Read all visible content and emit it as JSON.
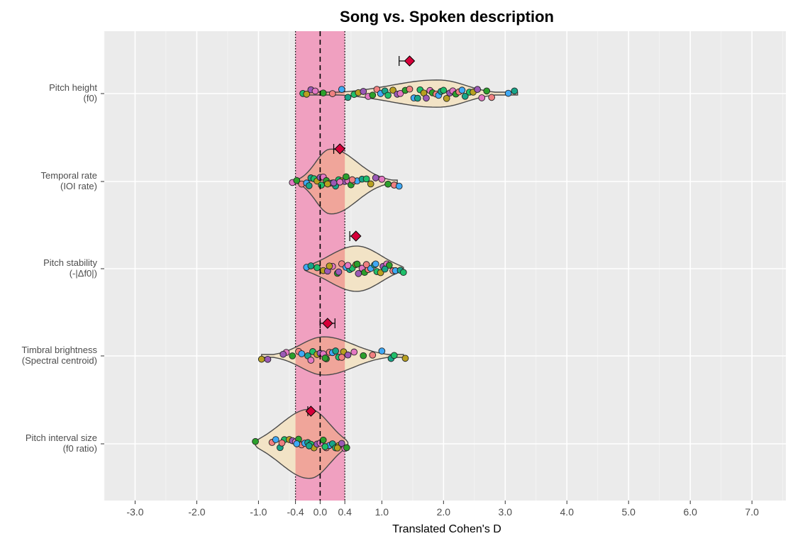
{
  "chart_data": {
    "type": "violin",
    "title": "Song vs. Spoken description",
    "xlabel": "Translated Cohen's D",
    "ylabel": "",
    "xlim": [
      -3.5,
      7.55
    ],
    "x_ticks": [
      "-3.0",
      "-2.0",
      "-1.0",
      "-0.4",
      "0.0",
      "0.4",
      "1.0",
      "2.0",
      "3.0",
      "4.0",
      "5.0",
      "6.0",
      "7.0"
    ],
    "null_band": [
      -0.4,
      0.4
    ],
    "reference_line": 0.0,
    "colors": {
      "panel": "#ebebeb",
      "grid": "#ffffff",
      "null_band": "#f0a0c0",
      "violin_fill": "#f2e3c6",
      "violin_fill_in_band": "#f0a59a",
      "violin_stroke": "#4a4a4a",
      "estimate_marker": "#d6003a",
      "point_palette": [
        "#1fbf6a",
        "#e377c2",
        "#3fa9f5",
        "#b8a020",
        "#2ca02c",
        "#17a589",
        "#9b59b6",
        "#f08080"
      ]
    },
    "categories": [
      {
        "label": [
          "Pitch height",
          "(f0)"
        ],
        "estimate": 1.45,
        "ci": [
          1.28,
          1.45
        ],
        "violin": {
          "min": -0.3,
          "max": 3.2,
          "mode": 1.95,
          "halfwidth": 0.16,
          "skew": 0.35
        },
        "points": [
          -0.28,
          -0.22,
          -0.15,
          -0.08,
          0.05,
          0.2,
          0.35,
          0.45,
          0.55,
          0.62,
          0.7,
          0.78,
          0.85,
          0.92,
          0.98,
          1.05,
          1.1,
          1.18,
          1.25,
          1.3,
          1.38,
          1.45,
          1.52,
          1.58,
          1.62,
          1.68,
          1.72,
          1.78,
          1.82,
          1.88,
          1.92,
          1.96,
          2.0,
          2.05,
          2.1,
          2.15,
          2.2,
          2.25,
          2.3,
          2.35,
          2.42,
          2.48,
          2.55,
          2.62,
          2.7,
          2.78,
          3.05,
          3.15
        ]
      },
      {
        "label": [
          "Temporal rate",
          "(IOI rate)"
        ],
        "estimate": 0.32,
        "ci": [
          0.22,
          0.32
        ],
        "violin": {
          "min": -0.45,
          "max": 1.25,
          "mode": 0.15,
          "halfwidth": 0.38,
          "skew": 0.4
        },
        "points": [
          -0.45,
          -0.38,
          -0.3,
          -0.22,
          -0.15,
          -0.1,
          -0.05,
          0.0,
          0.05,
          0.1,
          0.15,
          0.2,
          0.25,
          0.3,
          0.35,
          0.4,
          0.45,
          0.5,
          0.55,
          0.6,
          0.68,
          0.75,
          0.82,
          0.9,
          1.0,
          1.1,
          1.2,
          1.28,
          -0.18,
          0.02,
          0.12,
          0.22,
          0.32,
          0.42,
          0.52
        ]
      },
      {
        "label": [
          "Pitch stability",
          "(-|Δf0|)"
        ],
        "estimate": 0.58,
        "ci": [
          0.48,
          0.58
        ],
        "violin": {
          "min": -0.25,
          "max": 1.35,
          "mode": 0.6,
          "halfwidth": 0.26,
          "skew": 0.55
        },
        "points": [
          -0.22,
          -0.15,
          -0.05,
          0.05,
          0.12,
          0.2,
          0.28,
          0.35,
          0.42,
          0.48,
          0.52,
          0.58,
          0.62,
          0.68,
          0.72,
          0.78,
          0.82,
          0.88,
          0.92,
          0.98,
          1.02,
          1.08,
          1.12,
          1.18,
          1.22,
          1.3,
          1.35,
          0.15,
          0.3,
          0.45,
          0.6,
          0.75,
          0.9,
          1.05
        ]
      },
      {
        "label": [
          "Timbral brightness",
          "(Spectral centroid)"
        ],
        "estimate": 0.12,
        "ci": [
          0.0,
          0.24
        ],
        "violin": {
          "min": -0.95,
          "max": 1.35,
          "mode": 0.05,
          "halfwidth": 0.22,
          "skew": 0.38
        },
        "points": [
          -0.95,
          -0.85,
          -0.55,
          -0.45,
          -0.35,
          -0.3,
          -0.2,
          -0.12,
          -0.05,
          0.0,
          0.05,
          0.1,
          0.15,
          0.2,
          0.25,
          0.3,
          0.38,
          0.45,
          0.55,
          0.7,
          0.85,
          1.0,
          1.15,
          1.2,
          1.38,
          -0.6,
          -0.15,
          0.08,
          0.35
        ]
      },
      {
        "label": [
          "Pitch interval size",
          "(f0 ratio)"
        ],
        "estimate": -0.15,
        "ci": [
          -0.2,
          -0.15
        ],
        "violin": {
          "min": -1.05,
          "max": 0.45,
          "mode": -0.15,
          "halfwidth": 0.4,
          "skew": 0.55
        },
        "points": [
          -1.05,
          -0.78,
          -0.72,
          -0.65,
          -0.58,
          -0.5,
          -0.45,
          -0.4,
          -0.35,
          -0.3,
          -0.25,
          -0.2,
          -0.15,
          -0.1,
          -0.05,
          0.0,
          0.05,
          0.1,
          0.15,
          0.2,
          0.25,
          0.3,
          0.35,
          0.4,
          0.43,
          -0.62,
          -0.38,
          -0.18,
          0.08,
          0.28
        ]
      }
    ]
  }
}
